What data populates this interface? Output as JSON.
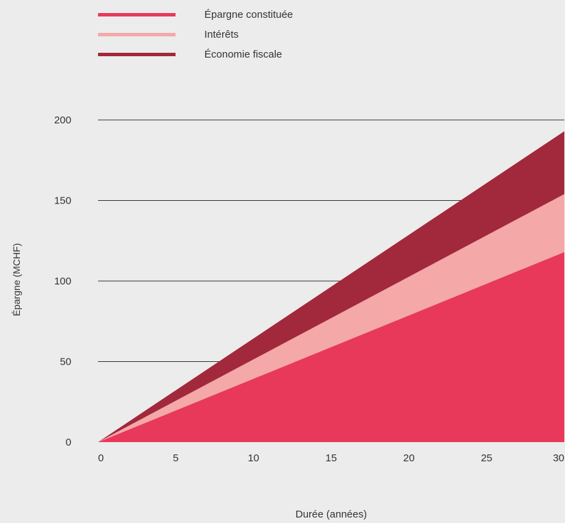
{
  "chart_data": {
    "type": "area",
    "stacked": true,
    "x": [
      0,
      30
    ],
    "series": [
      {
        "name": "Épargne constituée",
        "color": "#e8395a",
        "values": [
          0,
          118
        ]
      },
      {
        "name": "Intérêts",
        "color": "#f4a8a8",
        "values": [
          0,
          36
        ]
      },
      {
        "name": "Économie fiscale",
        "color": "#a2283b",
        "values": [
          0,
          39
        ]
      }
    ],
    "xlabel": "Durée (années)",
    "ylabel": "Épargne (MCHF)",
    "xlim": [
      0,
      30
    ],
    "ylim": [
      0,
      200
    ],
    "xticks": [
      "0",
      "5",
      "10",
      "15",
      "20",
      "25",
      "30"
    ],
    "yticks": [
      "0",
      "50",
      "100",
      "150",
      "200"
    ],
    "grid": "horizontal",
    "legend_position": "top-left"
  }
}
